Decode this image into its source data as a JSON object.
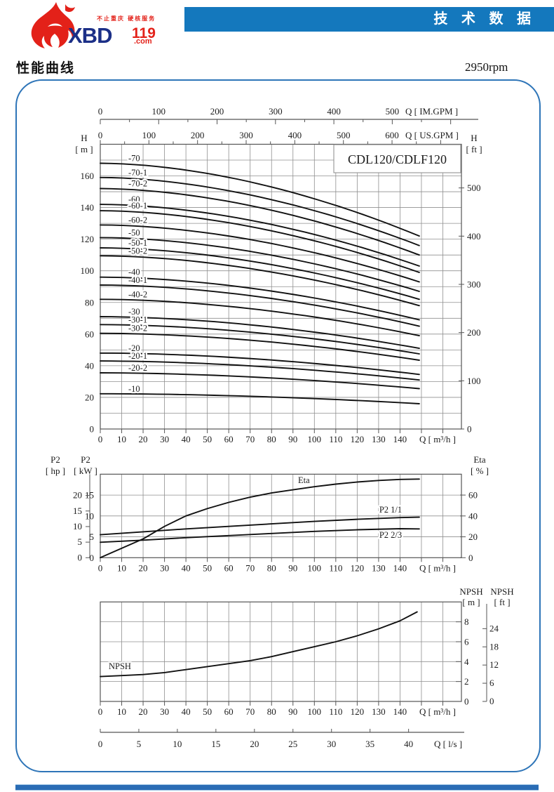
{
  "header": {
    "banner_text": "技 术 数 据",
    "logo": {
      "tagline": "不止重庆 硬核服务",
      "brand": "XBD",
      "brand_number": "119",
      "brand_domain": ".com"
    }
  },
  "page": {
    "section_title": "性能曲线",
    "speed": "2950rpm"
  },
  "chart_data": [
    {
      "type": "line",
      "id": "head-curves",
      "title": "CDL120/CDLF120",
      "x_axis": {
        "unit_label": "Q [ m³/h ]",
        "min": 0,
        "max": 169,
        "grid_step": 10,
        "curve_end": 149,
        "tick_labels": [
          0,
          10,
          20,
          30,
          40,
          50,
          60,
          70,
          80,
          90,
          100,
          110,
          120,
          130,
          140
        ]
      },
      "top_scales": [
        {
          "unit_label": "Q [ IM.GPM ]",
          "major_ticks": [
            0,
            100,
            200,
            300,
            400,
            500
          ],
          "m3h_per_unit": 0.27276
        },
        {
          "unit_label": "Q [ US.GPM ]",
          "major_ticks": [
            0,
            100,
            200,
            300,
            400,
            500,
            600
          ],
          "m3h_per_unit": 0.22712
        }
      ],
      "y_left": {
        "name": "H",
        "unit": "[ m ]",
        "min": 0,
        "max": 180,
        "grid_step": 10,
        "tick_labels": [
          0,
          20,
          40,
          60,
          80,
          100,
          120,
          140,
          160
        ]
      },
      "y_right": {
        "name": "H",
        "unit": "[ ft ]",
        "tick_labels": [
          0,
          100,
          200,
          300,
          400,
          500
        ],
        "m_per_ft": 0.3048
      },
      "series": [
        {
          "name": "-70",
          "h_start": 168,
          "h_end": 122
        },
        {
          "name": "-70-1",
          "h_start": 159,
          "h_end": 116
        },
        {
          "name": "-70-2",
          "h_start": 152,
          "h_end": 110
        },
        {
          "name": "-60",
          "h_start": 142,
          "h_end": 103
        },
        {
          "name": "-60-1",
          "h_start": 138,
          "h_end": 99
        },
        {
          "name": "-60-2",
          "h_start": 129,
          "h_end": 93
        },
        {
          "name": "-50",
          "h_start": 121,
          "h_end": 87
        },
        {
          "name": "-50-1",
          "h_start": 114.5,
          "h_end": 82
        },
        {
          "name": "-50-2",
          "h_start": 109.5,
          "h_end": 78
        },
        {
          "name": "-40",
          "h_start": 96,
          "h_end": 69
        },
        {
          "name": "-40-1",
          "h_start": 91,
          "h_end": 65
        },
        {
          "name": "-40-2",
          "h_start": 82,
          "h_end": 59
        },
        {
          "name": "-30",
          "h_start": 71,
          "h_end": 51
        },
        {
          "name": "-30-1",
          "h_start": 66,
          "h_end": 47.5
        },
        {
          "name": "-30-2",
          "h_start": 60.5,
          "h_end": 43.5
        },
        {
          "name": "-20",
          "h_start": 48,
          "h_end": 34.5
        },
        {
          "name": "-20-1",
          "h_start": 43,
          "h_end": 31
        },
        {
          "name": "-20-2",
          "h_start": 35.5,
          "h_end": 25.5
        },
        {
          "name": "-10",
          "h_start": 22.3,
          "h_end": 16
        }
      ]
    },
    {
      "type": "line",
      "id": "power-efficiency",
      "x_axis": {
        "unit_label": "Q [ m³/h ]",
        "tick_labels": [
          0,
          10,
          20,
          30,
          40,
          50,
          60,
          70,
          80,
          90,
          100,
          110,
          120,
          130,
          140
        ]
      },
      "y_hp": {
        "name": "P2",
        "unit": "[ hp ]",
        "tick_labels": [
          0,
          5,
          10,
          15,
          20
        ],
        "kw_per_hp": 0.7457
      },
      "y_kw": {
        "name": "P2",
        "unit": "[ kW ]",
        "min": 0,
        "max": 20,
        "grid_step": 5,
        "tick_labels": [
          0,
          5,
          10,
          15
        ]
      },
      "y_eta": {
        "name": "Eta",
        "unit": "[ % ]",
        "min": 0,
        "max": 80,
        "tick_labels": [
          0,
          20,
          40,
          60
        ]
      },
      "series": [
        {
          "name": "Eta",
          "scale": "eta",
          "points": [
            [
              0,
              0
            ],
            [
              10,
              9
            ],
            [
              20,
              18
            ],
            [
              30,
              30
            ],
            [
              40,
              40
            ],
            [
              50,
              47
            ],
            [
              60,
              53
            ],
            [
              70,
              58
            ],
            [
              80,
              62
            ],
            [
              90,
              65
            ],
            [
              100,
              68
            ],
            [
              110,
              70.5
            ],
            [
              120,
              72.5
            ],
            [
              130,
              74
            ],
            [
              140,
              75
            ],
            [
              149,
              75.3
            ]
          ]
        },
        {
          "name": "P2  1/1",
          "scale": "kw",
          "points": [
            [
              0,
              5.5
            ],
            [
              20,
              6.2
            ],
            [
              40,
              6.9
            ],
            [
              60,
              7.5
            ],
            [
              80,
              8.1
            ],
            [
              100,
              8.7
            ],
            [
              120,
              9.2
            ],
            [
              140,
              9.6
            ],
            [
              149,
              9.7
            ]
          ]
        },
        {
          "name": "P2  2/3",
          "scale": "kw",
          "points": [
            [
              0,
              3.7
            ],
            [
              20,
              4.2
            ],
            [
              40,
              4.8
            ],
            [
              60,
              5.3
            ],
            [
              80,
              5.8
            ],
            [
              100,
              6.3
            ],
            [
              120,
              6.7
            ],
            [
              140,
              6.95
            ],
            [
              149,
              6.9
            ]
          ]
        }
      ]
    },
    {
      "type": "line",
      "id": "npsh",
      "x_axis": {
        "unit_label": "Q [ m³/h ]",
        "tick_labels": [
          0,
          10,
          20,
          30,
          40,
          50,
          60,
          70,
          80,
          90,
          100,
          110,
          120,
          130,
          140
        ]
      },
      "bottom_scale": {
        "unit_label": "Q [ l/s ]",
        "major_ticks": [
          0,
          5,
          10,
          15,
          20,
          25,
          30,
          35,
          40
        ],
        "m3h_per_unit": 3.6
      },
      "y_left": {
        "name": "NPSH",
        "unit": "[ m ]",
        "min": 0,
        "max": 10,
        "grid_step": 2,
        "tick_labels": [
          0,
          2,
          4,
          6,
          8
        ]
      },
      "y_right": {
        "name": "NPSH",
        "unit": "[ ft ]",
        "tick_labels": [
          0,
          6,
          12,
          18,
          24
        ],
        "m_per_ft": 0.3048
      },
      "series": [
        {
          "name": "NPSH",
          "points": [
            [
              0,
              2.5
            ],
            [
              10,
              2.6
            ],
            [
              20,
              2.7
            ],
            [
              30,
              2.9
            ],
            [
              40,
              3.2
            ],
            [
              50,
              3.5
            ],
            [
              60,
              3.8
            ],
            [
              70,
              4.1
            ],
            [
              80,
              4.5
            ],
            [
              90,
              5.0
            ],
            [
              100,
              5.5
            ],
            [
              110,
              6.0
            ],
            [
              120,
              6.6
            ],
            [
              130,
              7.3
            ],
            [
              140,
              8.1
            ],
            [
              148,
              9.0
            ]
          ]
        }
      ]
    }
  ]
}
